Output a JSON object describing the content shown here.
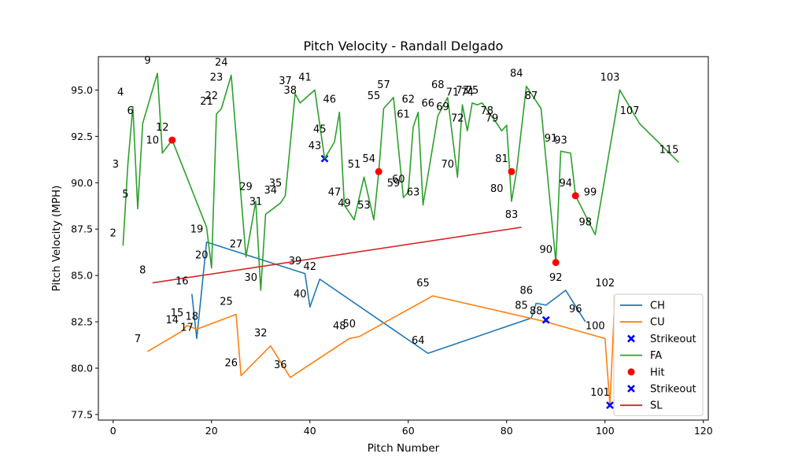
{
  "chart_data": {
    "type": "line",
    "title": "Pitch Velocity - Randall Delgado",
    "xlabel": "Pitch Number",
    "ylabel": "Pitch Velocity (MPH)",
    "xlim": [
      -3,
      121
    ],
    "ylim": [
      77.2,
      96.8
    ],
    "xticks": [
      0,
      20,
      40,
      60,
      80,
      100,
      120
    ],
    "yticks": [
      77.5,
      80.0,
      82.5,
      85.0,
      87.5,
      90.0,
      92.5,
      95.0
    ],
    "ytick_labels": [
      "77.5",
      "80.0",
      "82.5",
      "85.0",
      "87.5",
      "90.0",
      "92.5",
      "95.0"
    ],
    "legend_position": "lower right",
    "series": [
      {
        "name": "CH",
        "kind": "line",
        "color": "#1f77b4",
        "points": [
          [
            16,
            84.0
          ],
          [
            17,
            81.6
          ],
          [
            19,
            86.8
          ],
          [
            39,
            85.1
          ],
          [
            40,
            83.3
          ],
          [
            42,
            84.8
          ],
          [
            64,
            80.8
          ],
          [
            85,
            82.7
          ],
          [
            86,
            83.5
          ],
          [
            88,
            83.4
          ],
          [
            92,
            84.2
          ],
          [
            96,
            82.5
          ]
        ]
      },
      {
        "name": "CU",
        "kind": "line",
        "color": "#ff7f0e",
        "points": [
          [
            7,
            80.9
          ],
          [
            14,
            82.0
          ],
          [
            15,
            82.3
          ],
          [
            17,
            82.1
          ],
          [
            25,
            82.9
          ],
          [
            26,
            79.6
          ],
          [
            32,
            81.2
          ],
          [
            36,
            79.5
          ],
          [
            48,
            81.6
          ],
          [
            50,
            81.7
          ],
          [
            65,
            83.9
          ],
          [
            88,
            82.5
          ],
          [
            100,
            81.6
          ],
          [
            101,
            78.0
          ],
          [
            102,
            83.9
          ]
        ]
      },
      {
        "name": "Strikeout",
        "kind": "marker",
        "marker": "x",
        "color": "#0000ff",
        "points": [
          [
            43,
            91.3
          ],
          [
            88,
            82.6
          ],
          [
            101,
            78.0
          ]
        ]
      },
      {
        "name": "FA",
        "kind": "line",
        "color": "#2ca02c",
        "points": [
          [
            2,
            86.6
          ],
          [
            3,
            91.0
          ],
          [
            4,
            94.1
          ],
          [
            5,
            88.6
          ],
          [
            6,
            93.2
          ],
          [
            9,
            95.9
          ],
          [
            10,
            91.6
          ],
          [
            12,
            92.3
          ],
          [
            19,
            87.6
          ],
          [
            20,
            85.4
          ],
          [
            21,
            93.7
          ],
          [
            22,
            94.0
          ],
          [
            24,
            95.8
          ],
          [
            27,
            86.0
          ],
          [
            29,
            89.0
          ],
          [
            30,
            84.2
          ],
          [
            31,
            88.3
          ],
          [
            34,
            88.9
          ],
          [
            35,
            89.3
          ],
          [
            37,
            94.8
          ],
          [
            38,
            94.3
          ],
          [
            41,
            95.0
          ],
          [
            43,
            91.3
          ],
          [
            45,
            92.2
          ],
          [
            46,
            93.8
          ],
          [
            47,
            88.8
          ],
          [
            49,
            88.0
          ],
          [
            51,
            90.3
          ],
          [
            53,
            88.0
          ],
          [
            54,
            90.6
          ],
          [
            55,
            94.0
          ],
          [
            57,
            94.6
          ],
          [
            59,
            89.2
          ],
          [
            60,
            89.5
          ],
          [
            61,
            93.0
          ],
          [
            62,
            93.8
          ],
          [
            63,
            88.8
          ],
          [
            66,
            93.6
          ],
          [
            68,
            94.6
          ],
          [
            70,
            90.3
          ],
          [
            71,
            94.2
          ],
          [
            72,
            92.8
          ],
          [
            73,
            94.3
          ],
          [
            74,
            94.2
          ],
          [
            75,
            94.3
          ],
          [
            78,
            93.2
          ],
          [
            79,
            92.8
          ],
          [
            80,
            93.1
          ],
          [
            81,
            89.0
          ],
          [
            82,
            90.6
          ],
          [
            84,
            95.2
          ],
          [
            87,
            94.0
          ],
          [
            90,
            85.7
          ],
          [
            91,
            91.7
          ],
          [
            93,
            91.6
          ],
          [
            94,
            89.3
          ],
          [
            98,
            87.2
          ],
          [
            103,
            95.0
          ],
          [
            107,
            93.2
          ],
          [
            115,
            91.1
          ]
        ]
      },
      {
        "name": "Hit",
        "kind": "marker",
        "marker": "o",
        "color": "#ff0000",
        "points": [
          [
            12,
            92.3
          ],
          [
            54,
            90.6
          ],
          [
            81,
            90.6
          ],
          [
            90,
            85.7
          ],
          [
            94,
            89.3
          ]
        ]
      },
      {
        "name": "Strikeout",
        "kind": "marker",
        "marker": "x",
        "color": "#0000ff",
        "points": []
      },
      {
        "name": "SL",
        "kind": "line",
        "color": "#d62728",
        "points": [
          [
            8,
            84.6
          ],
          [
            83,
            87.6
          ]
        ]
      }
    ],
    "annotations": [
      {
        "text": "2",
        "x": 0,
        "y": 87.3
      },
      {
        "text": "3",
        "x": 0.5,
        "y": 91.0
      },
      {
        "text": "4",
        "x": 1.5,
        "y": 94.9
      },
      {
        "text": "5",
        "x": 2.5,
        "y": 89.4
      },
      {
        "text": "6",
        "x": 3.5,
        "y": 93.9
      },
      {
        "text": "7",
        "x": 5,
        "y": 81.6
      },
      {
        "text": "8",
        "x": 6,
        "y": 85.3
      },
      {
        "text": "9",
        "x": 7,
        "y": 96.6
      },
      {
        "text": "10",
        "x": 8,
        "y": 92.3
      },
      {
        "text": "12",
        "x": 10,
        "y": 93.0
      },
      {
        "text": "14",
        "x": 12,
        "y": 82.6
      },
      {
        "text": "15",
        "x": 13,
        "y": 83.0
      },
      {
        "text": "16",
        "x": 14,
        "y": 84.7
      },
      {
        "text": "17",
        "x": 15,
        "y": 82.2
      },
      {
        "text": "18",
        "x": 16,
        "y": 82.8
      },
      {
        "text": "19",
        "x": 17,
        "y": 87.5
      },
      {
        "text": "20",
        "x": 18,
        "y": 86.1
      },
      {
        "text": "21",
        "x": 19,
        "y": 94.4
      },
      {
        "text": "22",
        "x": 20,
        "y": 94.7
      },
      {
        "text": "23",
        "x": 21,
        "y": 95.7
      },
      {
        "text": "24",
        "x": 22,
        "y": 96.5
      },
      {
        "text": "25",
        "x": 23,
        "y": 83.6
      },
      {
        "text": "26",
        "x": 24,
        "y": 80.3
      },
      {
        "text": "27",
        "x": 25,
        "y": 86.7
      },
      {
        "text": "29",
        "x": 27,
        "y": 89.8
      },
      {
        "text": "30",
        "x": 28,
        "y": 84.9
      },
      {
        "text": "31",
        "x": 29,
        "y": 89.0
      },
      {
        "text": "32",
        "x": 30,
        "y": 81.9
      },
      {
        "text": "34",
        "x": 32,
        "y": 89.6
      },
      {
        "text": "35",
        "x": 33,
        "y": 90.0
      },
      {
        "text": "36",
        "x": 34,
        "y": 80.2
      },
      {
        "text": "37",
        "x": 35,
        "y": 95.5
      },
      {
        "text": "38",
        "x": 36,
        "y": 95.0
      },
      {
        "text": "39",
        "x": 37,
        "y": 85.8
      },
      {
        "text": "40",
        "x": 38,
        "y": 84.0
      },
      {
        "text": "41",
        "x": 39,
        "y": 95.7
      },
      {
        "text": "42",
        "x": 40,
        "y": 85.5
      },
      {
        "text": "43",
        "x": 41,
        "y": 92.0
      },
      {
        "text": "45",
        "x": 42,
        "y": 92.9
      },
      {
        "text": "46",
        "x": 44,
        "y": 94.5
      },
      {
        "text": "47",
        "x": 45,
        "y": 89.5
      },
      {
        "text": "48",
        "x": 46,
        "y": 82.3
      },
      {
        "text": "49",
        "x": 47,
        "y": 88.9
      },
      {
        "text": "50",
        "x": 48,
        "y": 82.4
      },
      {
        "text": "51",
        "x": 49,
        "y": 91.0
      },
      {
        "text": "53",
        "x": 51,
        "y": 88.8
      },
      {
        "text": "54",
        "x": 52,
        "y": 91.3
      },
      {
        "text": "55",
        "x": 53,
        "y": 94.7
      },
      {
        "text": "57",
        "x": 55,
        "y": 95.3
      },
      {
        "text": "59",
        "x": 57,
        "y": 90.0
      },
      {
        "text": "60",
        "x": 58,
        "y": 90.2
      },
      {
        "text": "61",
        "x": 59,
        "y": 93.7
      },
      {
        "text": "62",
        "x": 60,
        "y": 94.5
      },
      {
        "text": "63",
        "x": 61,
        "y": 89.5
      },
      {
        "text": "64",
        "x": 62,
        "y": 81.5
      },
      {
        "text": "65",
        "x": 63,
        "y": 84.6
      },
      {
        "text": "66",
        "x": 64,
        "y": 94.3
      },
      {
        "text": "68",
        "x": 66,
        "y": 95.3
      },
      {
        "text": "69",
        "x": 67,
        "y": 94.1
      },
      {
        "text": "70",
        "x": 68,
        "y": 91.0
      },
      {
        "text": "71",
        "x": 69,
        "y": 94.9
      },
      {
        "text": "72",
        "x": 70,
        "y": 93.5
      },
      {
        "text": "73",
        "x": 71,
        "y": 95.0
      },
      {
        "text": "74",
        "x": 72,
        "y": 94.9
      },
      {
        "text": "75",
        "x": 73,
        "y": 95.0
      },
      {
        "text": "78",
        "x": 76,
        "y": 93.9
      },
      {
        "text": "79",
        "x": 77,
        "y": 93.5
      },
      {
        "text": "80",
        "x": 78,
        "y": 89.7
      },
      {
        "text": "81",
        "x": 79,
        "y": 91.3
      },
      {
        "text": "83",
        "x": 81,
        "y": 88.3
      },
      {
        "text": "84",
        "x": 82,
        "y": 95.9
      },
      {
        "text": "85",
        "x": 83,
        "y": 83.4
      },
      {
        "text": "86",
        "x": 84,
        "y": 84.2
      },
      {
        "text": "87",
        "x": 85,
        "y": 94.7
      },
      {
        "text": "88",
        "x": 86,
        "y": 83.1
      },
      {
        "text": "90",
        "x": 88,
        "y": 86.4
      },
      {
        "text": "91",
        "x": 89,
        "y": 92.4
      },
      {
        "text": "92",
        "x": 90,
        "y": 84.9
      },
      {
        "text": "93",
        "x": 91,
        "y": 92.3
      },
      {
        "text": "94",
        "x": 92,
        "y": 90.0
      },
      {
        "text": "96",
        "x": 94,
        "y": 83.2
      },
      {
        "text": "98",
        "x": 96,
        "y": 87.9
      },
      {
        "text": "99",
        "x": 97,
        "y": 89.5
      },
      {
        "text": "100",
        "x": 98,
        "y": 82.3
      },
      {
        "text": "101",
        "x": 99,
        "y": 78.7
      },
      {
        "text": "102",
        "x": 100,
        "y": 84.6
      },
      {
        "text": "103",
        "x": 101,
        "y": 95.7
      },
      {
        "text": "107",
        "x": 105,
        "y": 93.9
      },
      {
        "text": "115",
        "x": 113,
        "y": 91.8
      }
    ]
  }
}
